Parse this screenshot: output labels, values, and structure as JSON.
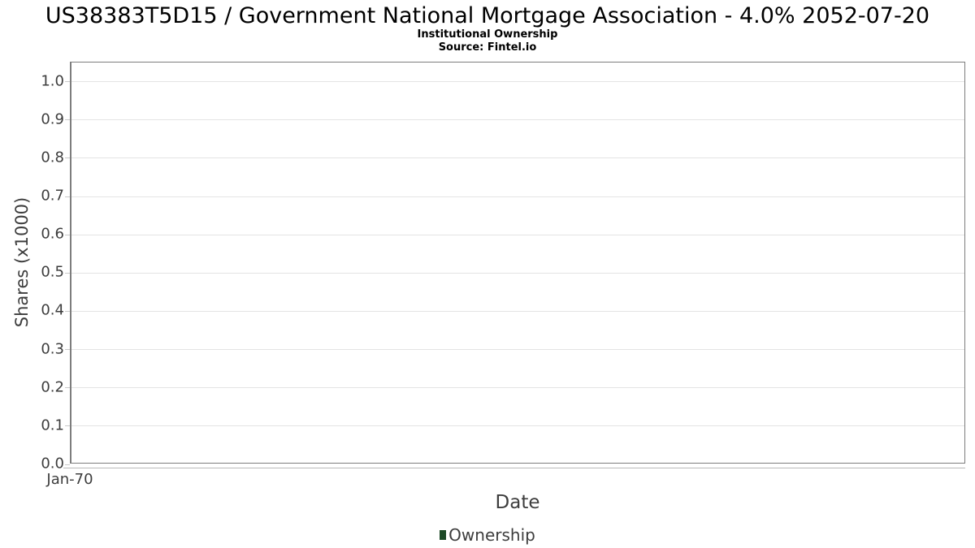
{
  "chart_data": {
    "type": "line",
    "title": "US38383T5D15 / Government National Mortgage Association - 4.0% 2052-07-20",
    "subtitle": "Institutional Ownership",
    "source": "Source: Fintel.io",
    "xlabel": "Date",
    "ylabel": "Shares (x1000)",
    "x_tick_labels": [
      "Jan-70"
    ],
    "y_ticks": [
      0.0,
      0.1,
      0.2,
      0.3,
      0.4,
      0.5,
      0.6,
      0.7,
      0.8,
      0.9,
      1.0
    ],
    "y_tick_labels": [
      "0.0",
      "0.1",
      "0.2",
      "0.3",
      "0.4",
      "0.5",
      "0.6",
      "0.7",
      "0.8",
      "0.9",
      "1.0"
    ],
    "ylim": [
      0,
      1.05
    ],
    "grid": true,
    "legend_position": "bottom",
    "series": [
      {
        "name": "Ownership",
        "color": "#1d4a27",
        "x": [],
        "values": []
      }
    ],
    "colors": {
      "plot_border": "#7d7d7d",
      "gridline": "#e4e4e4",
      "axis_line": "#b9b9b9",
      "tick_mark": "#c9c9c9",
      "axis_text": "#3d3d3d",
      "title_text": "#000000",
      "legend_marker": "#1d4a27"
    }
  }
}
